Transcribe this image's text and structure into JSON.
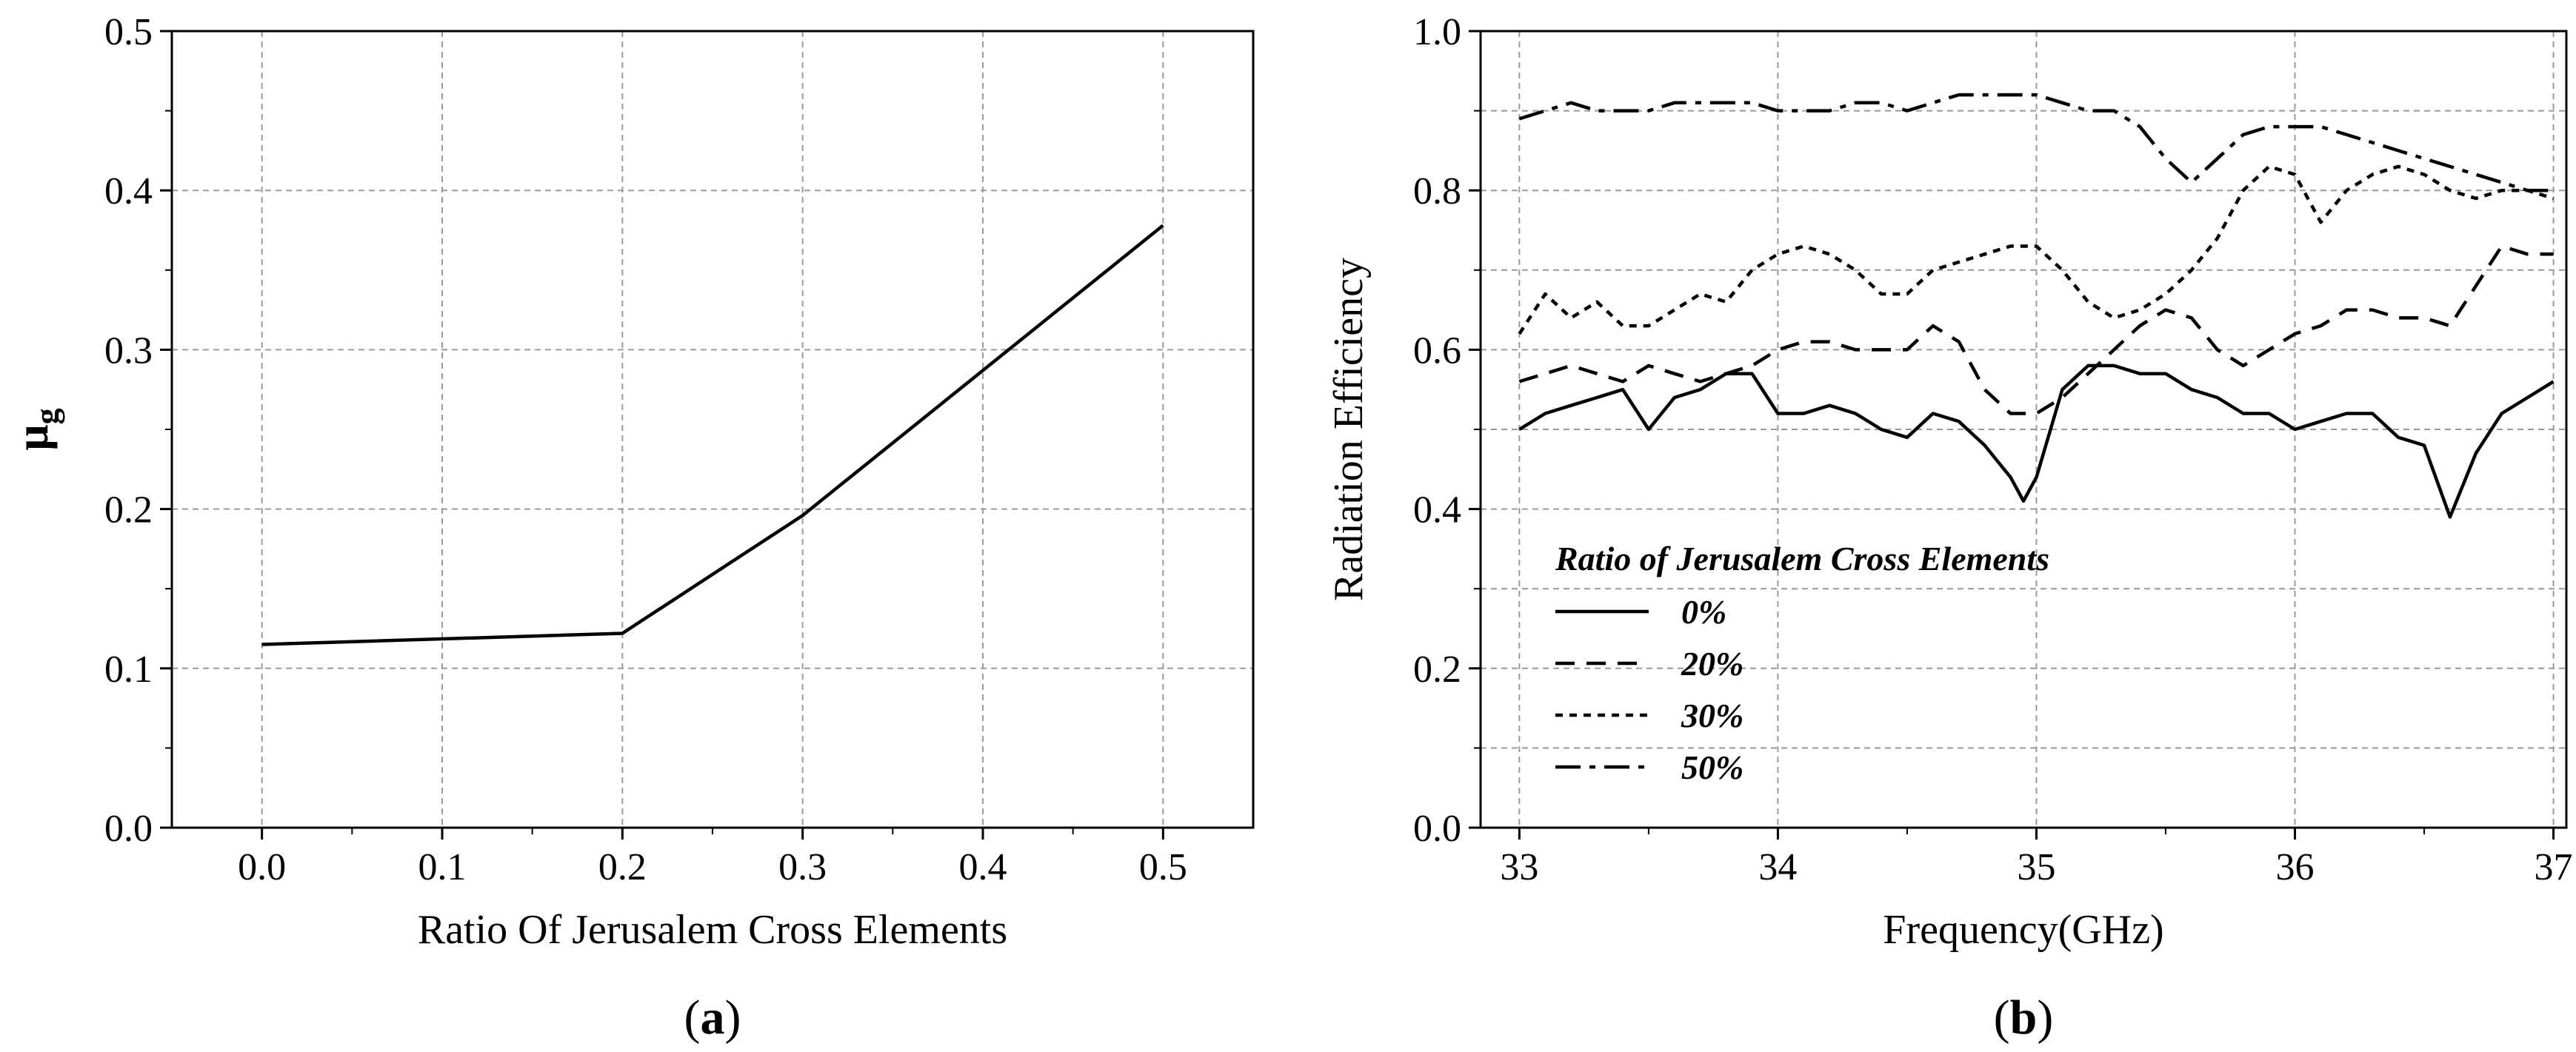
{
  "chart_data": [
    {
      "type": "line",
      "panel_label_open": "(",
      "panel_label": "a",
      "panel_label_close": ")",
      "xlabel": "Ratio Of Jerusalem Cross Elements",
      "ylabel_main": "μ",
      "ylabel_sub": "g",
      "xlim": [
        -0.05,
        0.55
      ],
      "ylim": [
        0.0,
        0.5
      ],
      "xticks": [
        "0.0",
        "0.1",
        "0.2",
        "0.3",
        "0.4",
        "0.5"
      ],
      "yticks": [
        "0.0",
        "0.1",
        "0.2",
        "0.3",
        "0.4",
        "0.5"
      ],
      "grid": true,
      "series": [
        {
          "name": "mu_g",
          "x": [
            0.0,
            0.2,
            0.3,
            0.4,
            0.5
          ],
          "y": [
            0.115,
            0.122,
            0.196,
            0.287,
            0.378
          ]
        }
      ]
    },
    {
      "type": "line",
      "panel_label_open": "(",
      "panel_label": "b",
      "panel_label_close": ")",
      "xlabel": "Frequency(GHz)",
      "ylabel": "Radiation Efficiency",
      "xlim": [
        32.85,
        37.05
      ],
      "ylim": [
        0.0,
        1.0
      ],
      "xticks": [
        "33",
        "34",
        "35",
        "36",
        "37"
      ],
      "yticks": [
        "0.0",
        "0.2",
        "0.4",
        "0.6",
        "0.8",
        "1.0"
      ],
      "grid": true,
      "legend_title": "Ratio of Jerusalem Cross Elements",
      "legend_position": "bottom-left",
      "series": [
        {
          "name": "0%",
          "style": "solid",
          "x": [
            33.0,
            33.1,
            33.2,
            33.3,
            33.4,
            33.5,
            33.6,
            33.7,
            33.8,
            33.9,
            34.0,
            34.1,
            34.2,
            34.3,
            34.4,
            34.5,
            34.6,
            34.7,
            34.8,
            34.9,
            34.95,
            35.0,
            35.1,
            35.2,
            35.3,
            35.4,
            35.5,
            35.6,
            35.7,
            35.8,
            35.9,
            36.0,
            36.1,
            36.2,
            36.3,
            36.4,
            36.5,
            36.6,
            36.7,
            36.8,
            36.9,
            37.0
          ],
          "y": [
            0.5,
            0.52,
            0.53,
            0.54,
            0.55,
            0.5,
            0.54,
            0.55,
            0.57,
            0.57,
            0.52,
            0.52,
            0.53,
            0.52,
            0.5,
            0.49,
            0.52,
            0.51,
            0.48,
            0.44,
            0.41,
            0.44,
            0.55,
            0.58,
            0.58,
            0.57,
            0.57,
            0.55,
            0.54,
            0.52,
            0.52,
            0.5,
            0.51,
            0.52,
            0.52,
            0.49,
            0.48,
            0.39,
            0.47,
            0.52,
            0.54,
            0.56
          ]
        },
        {
          "name": "20%",
          "style": "dashed",
          "x": [
            33.0,
            33.1,
            33.2,
            33.3,
            33.4,
            33.5,
            33.6,
            33.7,
            33.8,
            33.9,
            34.0,
            34.1,
            34.2,
            34.3,
            34.4,
            34.5,
            34.6,
            34.7,
            34.8,
            34.9,
            35.0,
            35.1,
            35.2,
            35.3,
            35.4,
            35.5,
            35.6,
            35.7,
            35.8,
            35.9,
            36.0,
            36.1,
            36.2,
            36.3,
            36.4,
            36.5,
            36.6,
            36.7,
            36.8,
            36.9,
            37.0
          ],
          "y": [
            0.56,
            0.57,
            0.58,
            0.57,
            0.56,
            0.58,
            0.57,
            0.56,
            0.57,
            0.58,
            0.6,
            0.61,
            0.61,
            0.6,
            0.6,
            0.6,
            0.63,
            0.61,
            0.55,
            0.52,
            0.52,
            0.54,
            0.57,
            0.6,
            0.63,
            0.65,
            0.64,
            0.6,
            0.58,
            0.6,
            0.62,
            0.63,
            0.65,
            0.65,
            0.64,
            0.64,
            0.63,
            0.68,
            0.73,
            0.72,
            0.72
          ]
        },
        {
          "name": "30%",
          "style": "dotted",
          "x": [
            33.0,
            33.1,
            33.2,
            33.3,
            33.4,
            33.5,
            33.6,
            33.7,
            33.8,
            33.9,
            34.0,
            34.1,
            34.2,
            34.3,
            34.4,
            34.5,
            34.6,
            34.7,
            34.8,
            34.9,
            35.0,
            35.1,
            35.2,
            35.3,
            35.4,
            35.5,
            35.6,
            35.7,
            35.8,
            35.9,
            36.0,
            36.1,
            36.2,
            36.3,
            36.4,
            36.5,
            36.6,
            36.7,
            36.8,
            36.9,
            37.0
          ],
          "y": [
            0.62,
            0.67,
            0.64,
            0.66,
            0.63,
            0.63,
            0.65,
            0.67,
            0.66,
            0.7,
            0.72,
            0.73,
            0.72,
            0.7,
            0.67,
            0.67,
            0.7,
            0.71,
            0.72,
            0.73,
            0.73,
            0.7,
            0.66,
            0.64,
            0.65,
            0.67,
            0.7,
            0.74,
            0.8,
            0.83,
            0.82,
            0.76,
            0.8,
            0.82,
            0.83,
            0.82,
            0.8,
            0.79,
            0.8,
            0.8,
            0.79
          ]
        },
        {
          "name": "50%",
          "style": "dashdot",
          "x": [
            33.0,
            33.1,
            33.2,
            33.3,
            33.4,
            33.5,
            33.6,
            33.7,
            33.8,
            33.9,
            34.0,
            34.1,
            34.2,
            34.3,
            34.4,
            34.5,
            34.6,
            34.7,
            34.8,
            34.9,
            35.0,
            35.1,
            35.2,
            35.3,
            35.4,
            35.5,
            35.6,
            35.7,
            35.8,
            35.9,
            36.0,
            36.1,
            36.2,
            36.3,
            36.4,
            36.5,
            36.6,
            36.7,
            36.8,
            36.9,
            37.0
          ],
          "y": [
            0.89,
            0.9,
            0.91,
            0.9,
            0.9,
            0.9,
            0.91,
            0.91,
            0.91,
            0.91,
            0.9,
            0.9,
            0.9,
            0.91,
            0.91,
            0.9,
            0.91,
            0.92,
            0.92,
            0.92,
            0.92,
            0.91,
            0.9,
            0.9,
            0.88,
            0.84,
            0.81,
            0.84,
            0.87,
            0.88,
            0.88,
            0.88,
            0.87,
            0.86,
            0.85,
            0.84,
            0.83,
            0.82,
            0.81,
            0.8,
            0.8
          ]
        }
      ]
    }
  ]
}
